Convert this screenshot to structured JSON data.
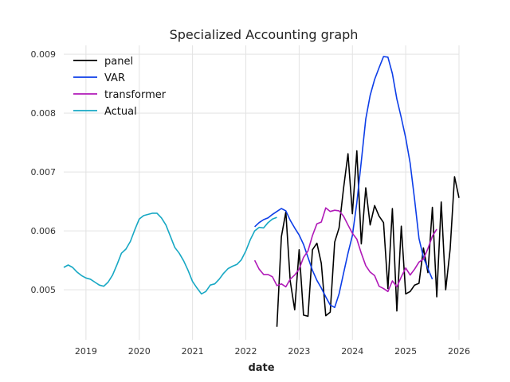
{
  "chart_data": {
    "type": "line",
    "title": "Specialized Accounting graph",
    "xlabel": "date",
    "ylabel": "",
    "xlim": [
      "2018-08-01",
      "2026-01-01"
    ],
    "ylim": [
      0.00415,
      0.00915
    ],
    "x_ticks": [
      "2019",
      "2020",
      "2021",
      "2022",
      "2023",
      "2024",
      "2025",
      "2026"
    ],
    "y_ticks": [
      "0.005",
      "0.006",
      "0.007",
      "0.008",
      "0.009"
    ],
    "grid": true,
    "legend_position": "top-left",
    "series": [
      {
        "name": "panel",
        "color": "#000000",
        "points": [
          [
            "2022-08",
            0.00437
          ],
          [
            "2022-09",
            0.0059
          ],
          [
            "2022-10",
            0.00632
          ],
          [
            "2022-11",
            0.00515
          ],
          [
            "2022-12",
            0.00466
          ],
          [
            "2023-01",
            0.00568
          ],
          [
            "2023-02",
            0.00457
          ],
          [
            "2023-03",
            0.00455
          ],
          [
            "2023-04",
            0.00568
          ],
          [
            "2023-05",
            0.00579
          ],
          [
            "2023-06",
            0.00545
          ],
          [
            "2023-07",
            0.00456
          ],
          [
            "2023-08",
            0.00462
          ],
          [
            "2023-09",
            0.00581
          ],
          [
            "2023-10",
            0.00605
          ],
          [
            "2023-11",
            0.00672
          ],
          [
            "2023-12",
            0.00731
          ],
          [
            "2024-01",
            0.00629
          ],
          [
            "2024-02",
            0.00736
          ],
          [
            "2024-03",
            0.00578
          ],
          [
            "2024-04",
            0.00673
          ],
          [
            "2024-05",
            0.0061
          ],
          [
            "2024-06",
            0.00643
          ],
          [
            "2024-07",
            0.00625
          ],
          [
            "2024-08",
            0.00614
          ],
          [
            "2024-09",
            0.00502
          ],
          [
            "2024-10",
            0.00638
          ],
          [
            "2024-11",
            0.00464
          ],
          [
            "2024-12",
            0.00608
          ],
          [
            "2025-01",
            0.00493
          ],
          [
            "2025-02",
            0.00497
          ],
          [
            "2025-03",
            0.00508
          ],
          [
            "2025-04",
            0.00511
          ],
          [
            "2025-05",
            0.00571
          ],
          [
            "2025-06",
            0.00529
          ],
          [
            "2025-07",
            0.0064
          ],
          [
            "2025-08",
            0.00488
          ],
          [
            "2025-09",
            0.00649
          ],
          [
            "2025-10",
            0.005
          ],
          [
            "2025-11",
            0.00569
          ],
          [
            "2025-12",
            0.00692
          ],
          [
            "2026-01",
            0.00656
          ]
        ]
      },
      {
        "name": "VAR",
        "color": "#0d3ee8",
        "points": [
          [
            "2022-03",
            0.00607
          ],
          [
            "2022-04",
            0.00614
          ],
          [
            "2022-05",
            0.00619
          ],
          [
            "2022-06",
            0.00622
          ],
          [
            "2022-07",
            0.00628
          ],
          [
            "2022-08",
            0.00633
          ],
          [
            "2022-09",
            0.00638
          ],
          [
            "2022-10",
            0.00634
          ],
          [
            "2022-11",
            0.00618
          ],
          [
            "2022-12",
            0.00605
          ],
          [
            "2023-01",
            0.00593
          ],
          [
            "2023-02",
            0.00577
          ],
          [
            "2023-03",
            0.00555
          ],
          [
            "2023-04",
            0.00533
          ],
          [
            "2023-05",
            0.00516
          ],
          [
            "2023-06",
            0.00503
          ],
          [
            "2023-07",
            0.00488
          ],
          [
            "2023-08",
            0.00474
          ],
          [
            "2023-09",
            0.0047
          ],
          [
            "2023-10",
            0.00493
          ],
          [
            "2023-11",
            0.00528
          ],
          [
            "2023-12",
            0.00562
          ],
          [
            "2024-01",
            0.00592
          ],
          [
            "2024-02",
            0.00648
          ],
          [
            "2024-03",
            0.00718
          ],
          [
            "2024-04",
            0.0079
          ],
          [
            "2024-05",
            0.0083
          ],
          [
            "2024-06",
            0.00857
          ],
          [
            "2024-07",
            0.00877
          ],
          [
            "2024-08",
            0.00896
          ],
          [
            "2024-09",
            0.00895
          ],
          [
            "2024-10",
            0.00867
          ],
          [
            "2024-11",
            0.00824
          ],
          [
            "2024-12",
            0.00792
          ],
          [
            "2025-01",
            0.00758
          ],
          [
            "2025-02",
            0.00715
          ],
          [
            "2025-03",
            0.00653
          ],
          [
            "2025-04",
            0.00587
          ],
          [
            "2025-05",
            0.00555
          ],
          [
            "2025-06",
            0.00536
          ],
          [
            "2025-07",
            0.00518
          ]
        ]
      },
      {
        "name": "transformer",
        "color": "#b01ab8",
        "points": [
          [
            "2022-03",
            0.0055
          ],
          [
            "2022-04",
            0.00535
          ],
          [
            "2022-05",
            0.00526
          ],
          [
            "2022-06",
            0.00526
          ],
          [
            "2022-07",
            0.00522
          ],
          [
            "2022-08",
            0.00507
          ],
          [
            "2022-09",
            0.0051
          ],
          [
            "2022-10",
            0.00505
          ],
          [
            "2022-11",
            0.00518
          ],
          [
            "2022-12",
            0.00525
          ],
          [
            "2023-01",
            0.00535
          ],
          [
            "2023-02",
            0.00555
          ],
          [
            "2023-03",
            0.00566
          ],
          [
            "2023-04",
            0.00592
          ],
          [
            "2023-05",
            0.00612
          ],
          [
            "2023-06",
            0.00615
          ],
          [
            "2023-07",
            0.00639
          ],
          [
            "2023-08",
            0.00633
          ],
          [
            "2023-09",
            0.00635
          ],
          [
            "2023-10",
            0.00634
          ],
          [
            "2023-11",
            0.00625
          ],
          [
            "2023-12",
            0.0061
          ],
          [
            "2024-01",
            0.00596
          ],
          [
            "2024-02",
            0.00586
          ],
          [
            "2024-03",
            0.00562
          ],
          [
            "2024-04",
            0.00541
          ],
          [
            "2024-05",
            0.0053
          ],
          [
            "2024-06",
            0.00524
          ],
          [
            "2024-07",
            0.00506
          ],
          [
            "2024-08",
            0.00502
          ],
          [
            "2024-09",
            0.00497
          ],
          [
            "2024-10",
            0.00515
          ],
          [
            "2024-11",
            0.00505
          ],
          [
            "2024-12",
            0.00522
          ],
          [
            "2025-01",
            0.00537
          ],
          [
            "2025-02",
            0.00525
          ],
          [
            "2025-03",
            0.00535
          ],
          [
            "2025-04",
            0.00547
          ],
          [
            "2025-05",
            0.00552
          ],
          [
            "2025-06",
            0.0057
          ],
          [
            "2025-07",
            0.00591
          ],
          [
            "2025-08",
            0.00603
          ]
        ]
      },
      {
        "name": "Actual",
        "color": "#17a8c4",
        "points": [
          [
            "2018-08",
            0.00538
          ],
          [
            "2018-09",
            0.00542
          ],
          [
            "2018-10",
            0.00538
          ],
          [
            "2018-11",
            0.0053
          ],
          [
            "2018-12",
            0.00524
          ],
          [
            "2019-01",
            0.0052
          ],
          [
            "2019-02",
            0.00518
          ],
          [
            "2019-03",
            0.00513
          ],
          [
            "2019-04",
            0.00508
          ],
          [
            "2019-05",
            0.00506
          ],
          [
            "2019-06",
            0.00513
          ],
          [
            "2019-07",
            0.00525
          ],
          [
            "2019-08",
            0.00543
          ],
          [
            "2019-09",
            0.00562
          ],
          [
            "2019-10",
            0.00569
          ],
          [
            "2019-11",
            0.00582
          ],
          [
            "2019-12",
            0.00602
          ],
          [
            "2020-01",
            0.0062
          ],
          [
            "2020-02",
            0.00626
          ],
          [
            "2020-03",
            0.00628
          ],
          [
            "2020-04",
            0.0063
          ],
          [
            "2020-05",
            0.0063
          ],
          [
            "2020-06",
            0.00622
          ],
          [
            "2020-07",
            0.0061
          ],
          [
            "2020-08",
            0.00591
          ],
          [
            "2020-09",
            0.00572
          ],
          [
            "2020-10",
            0.00562
          ],
          [
            "2020-11",
            0.00549
          ],
          [
            "2020-12",
            0.00533
          ],
          [
            "2021-01",
            0.00514
          ],
          [
            "2021-02",
            0.00503
          ],
          [
            "2021-03",
            0.00493
          ],
          [
            "2021-04",
            0.00497
          ],
          [
            "2021-05",
            0.00508
          ],
          [
            "2021-06",
            0.0051
          ],
          [
            "2021-07",
            0.00518
          ],
          [
            "2021-08",
            0.00528
          ],
          [
            "2021-09",
            0.00536
          ],
          [
            "2021-10",
            0.0054
          ],
          [
            "2021-11",
            0.00543
          ],
          [
            "2021-12",
            0.00551
          ],
          [
            "2022-01",
            0.00566
          ],
          [
            "2022-02",
            0.00585
          ],
          [
            "2022-03",
            0.006
          ],
          [
            "2022-04",
            0.00606
          ],
          [
            "2022-05",
            0.00605
          ],
          [
            "2022-06",
            0.00614
          ],
          [
            "2022-07",
            0.0062
          ],
          [
            "2022-08",
            0.00623
          ]
        ]
      }
    ]
  }
}
